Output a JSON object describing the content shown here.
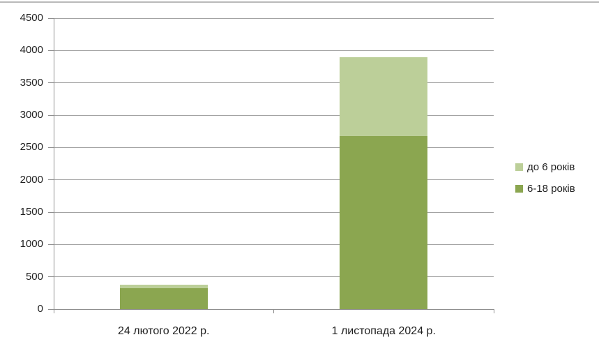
{
  "chart_data": {
    "type": "bar",
    "stacked": true,
    "title": "",
    "xlabel": "",
    "ylabel": "",
    "categories": [
      "24 лютого 2022 р.",
      "1 листопада 2024 р."
    ],
    "series": [
      {
        "name": "до 6 років",
        "color": "#bccf99",
        "values": [
          60,
          1220
        ]
      },
      {
        "name": "6-18 років",
        "color": "#8ba650",
        "values": [
          320,
          2680
        ]
      }
    ],
    "totals": [
      380,
      3900
    ],
    "ylim": [
      0,
      4500
    ],
    "yticks": [
      0,
      500,
      1000,
      1500,
      2000,
      2500,
      3000,
      3500,
      4000,
      4500
    ],
    "grid": true,
    "legend_position": "right",
    "colors": {
      "gridline": "#a3a3a3",
      "axis": "#8f8f8f",
      "text": "#1f1f1f",
      "background": "#ffffff",
      "chart_border": "#b9b9b9"
    }
  }
}
